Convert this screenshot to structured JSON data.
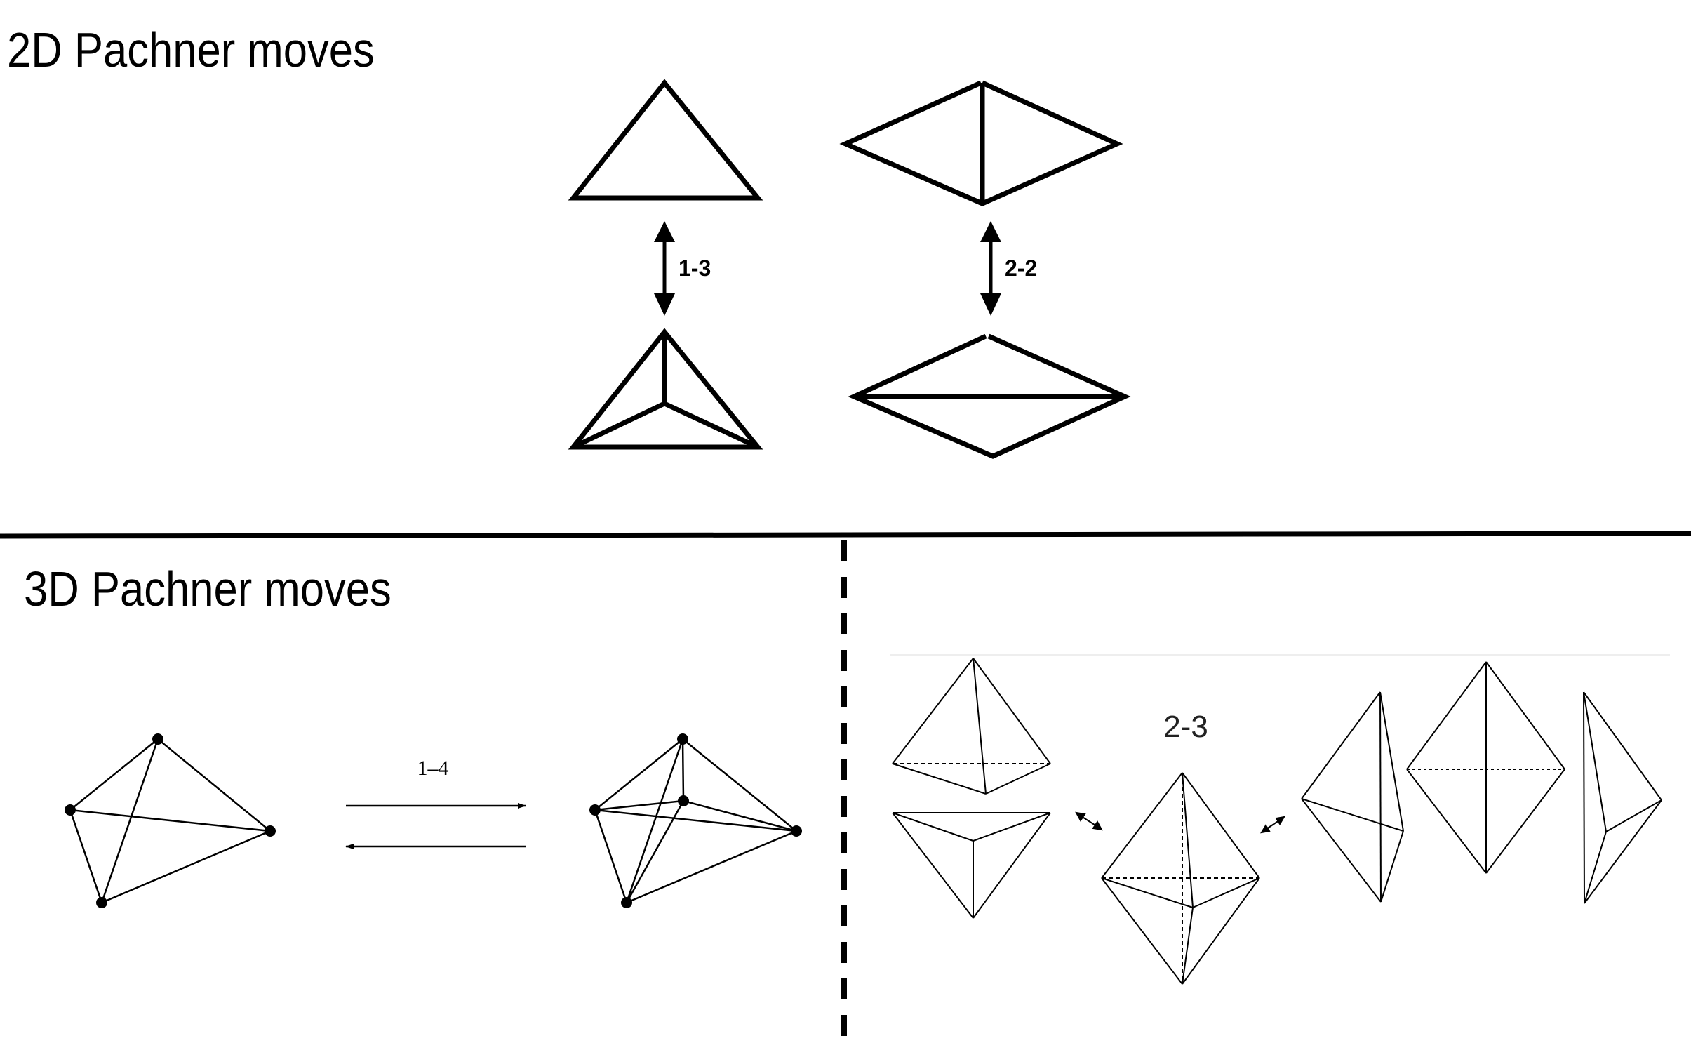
{
  "title_2d": "2D Pachner moves",
  "title_3d": "3D Pachner moves",
  "move_2d_13_label": "1-3",
  "move_2d_22_label": "2-2",
  "move_3d_14_label": "1–4",
  "move_3d_23_label": "2-3"
}
